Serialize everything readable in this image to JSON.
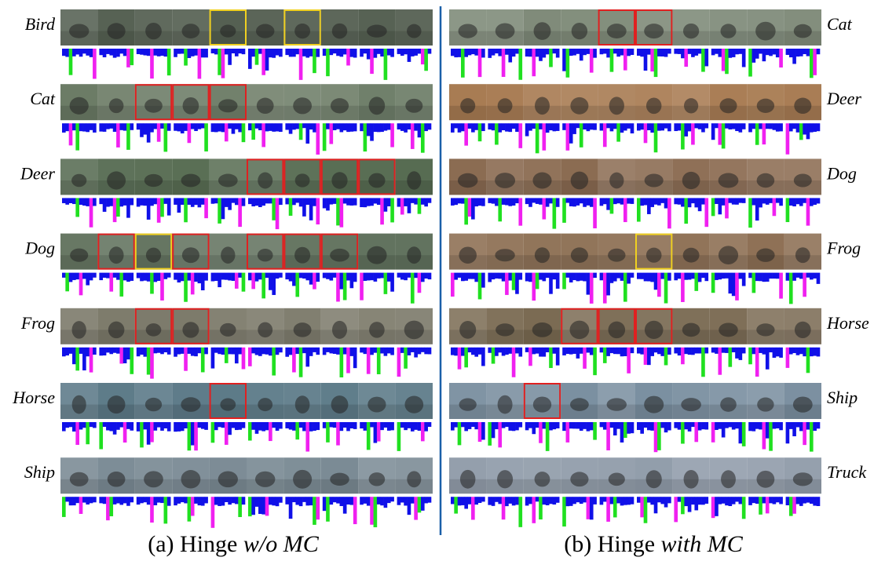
{
  "panels": [
    {
      "caption_prefix": "(a) Hinge ",
      "caption_emphasis": "w/o MC",
      "rows": [
        "Bird",
        "Cat",
        "Deer",
        "Dog",
        "Frog",
        "Horse",
        "Ship"
      ]
    },
    {
      "caption_prefix": "(b) Hinge ",
      "caption_emphasis": "with MC",
      "rows": [
        "Cat",
        "Deer",
        "Dog",
        "Frog",
        "Horse",
        "Ship",
        "Truck"
      ]
    }
  ]
}
